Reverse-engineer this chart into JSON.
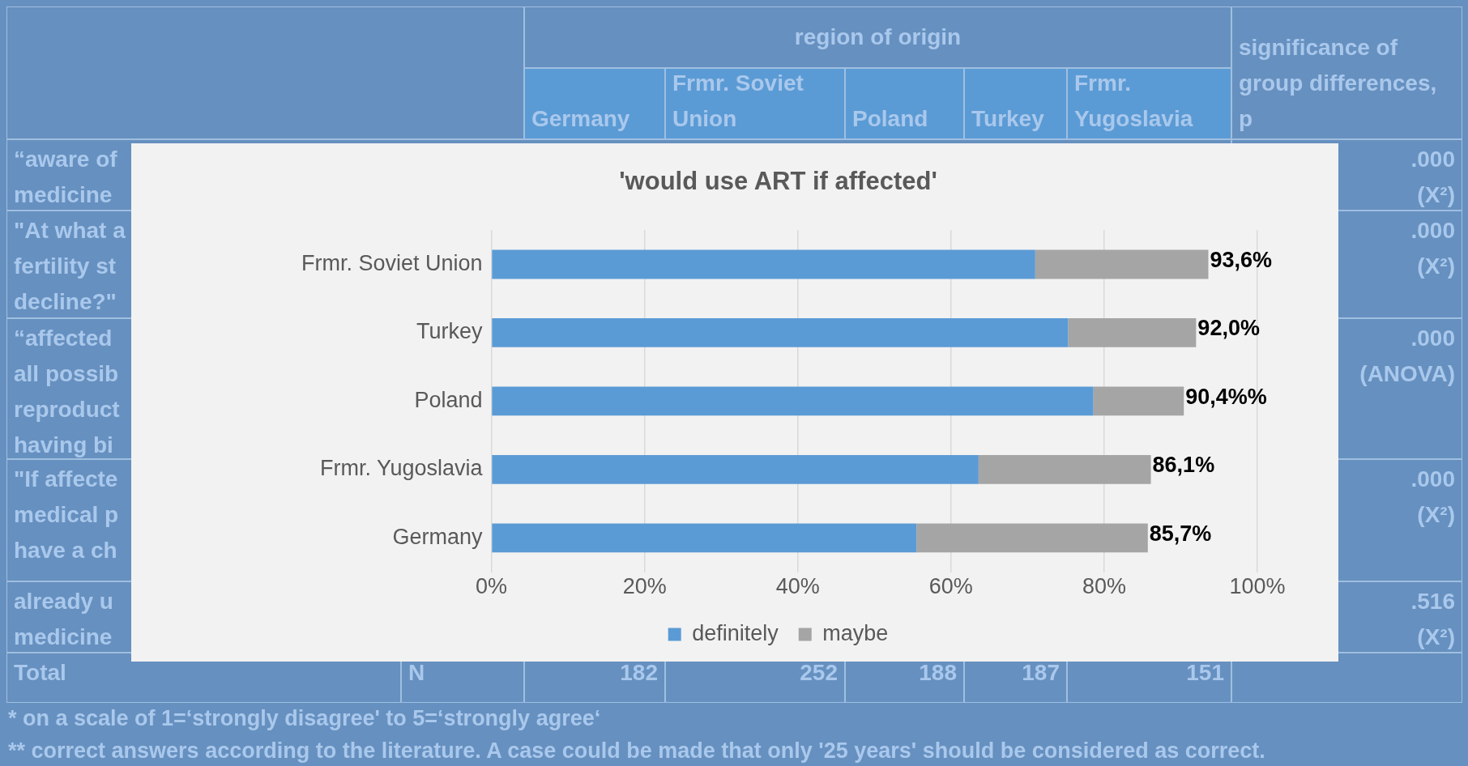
{
  "chart_data": {
    "type": "bar",
    "orientation": "horizontal",
    "stacked": true,
    "title": "'would use ART if affected'",
    "categories": [
      "Frmr. Soviet Union",
      "Turkey",
      "Poland",
      "Frmr. Yugoslavia",
      "Germany"
    ],
    "series": [
      {
        "name": "definitely",
        "color": "#5b9bd5",
        "values": [
          71.0,
          75.3,
          78.6,
          63.6,
          55.5
        ]
      },
      {
        "name": "maybe",
        "color": "#a5a5a5",
        "values": [
          22.6,
          16.7,
          11.8,
          22.5,
          30.2
        ]
      }
    ],
    "totals": [
      "93,6%",
      "92,0%",
      "90,4%%",
      "86,1%",
      "85,7%"
    ],
    "xlim": [
      0,
      100
    ],
    "xticks": [
      {
        "value": 0,
        "label": "0%"
      },
      {
        "value": 20,
        "label": "20%"
      },
      {
        "value": 40,
        "label": "40%"
      },
      {
        "value": 60,
        "label": "60%"
      },
      {
        "value": 80,
        "label": "80%"
      },
      {
        "value": 100,
        "label": "100%"
      }
    ],
    "grid": "x",
    "legend": "bottom",
    "annotations": [
      "region of origin",
      "Germany",
      "Frmr. Soviet Union",
      "Poland",
      "Turkey",
      "Frmr. Yugoslavia",
      "significance of group differences, p",
      "“aware of\nmedicine",
      ".000\n(X²)",
      "\"At what a\nfertility st\ndecline?\"",
      ".000\n(X²)",
      "“affected\nall possib\nreproduct\nhaving bi",
      ".000\n(ANOVA)",
      "\"If affecte\nmedical p\nhave a ch",
      ".000\n(X²)",
      "already u\nmedicine",
      ".516\n(X²)",
      "Total",
      "N",
      "182",
      "252",
      "188",
      "187",
      "151",
      "* on a scale of 1=‘strongly disagree' to 5=‘strongly agree‘",
      "** correct answers according to the literature. A case could be made that only '25 years' should be considered as correct."
    ]
  }
}
